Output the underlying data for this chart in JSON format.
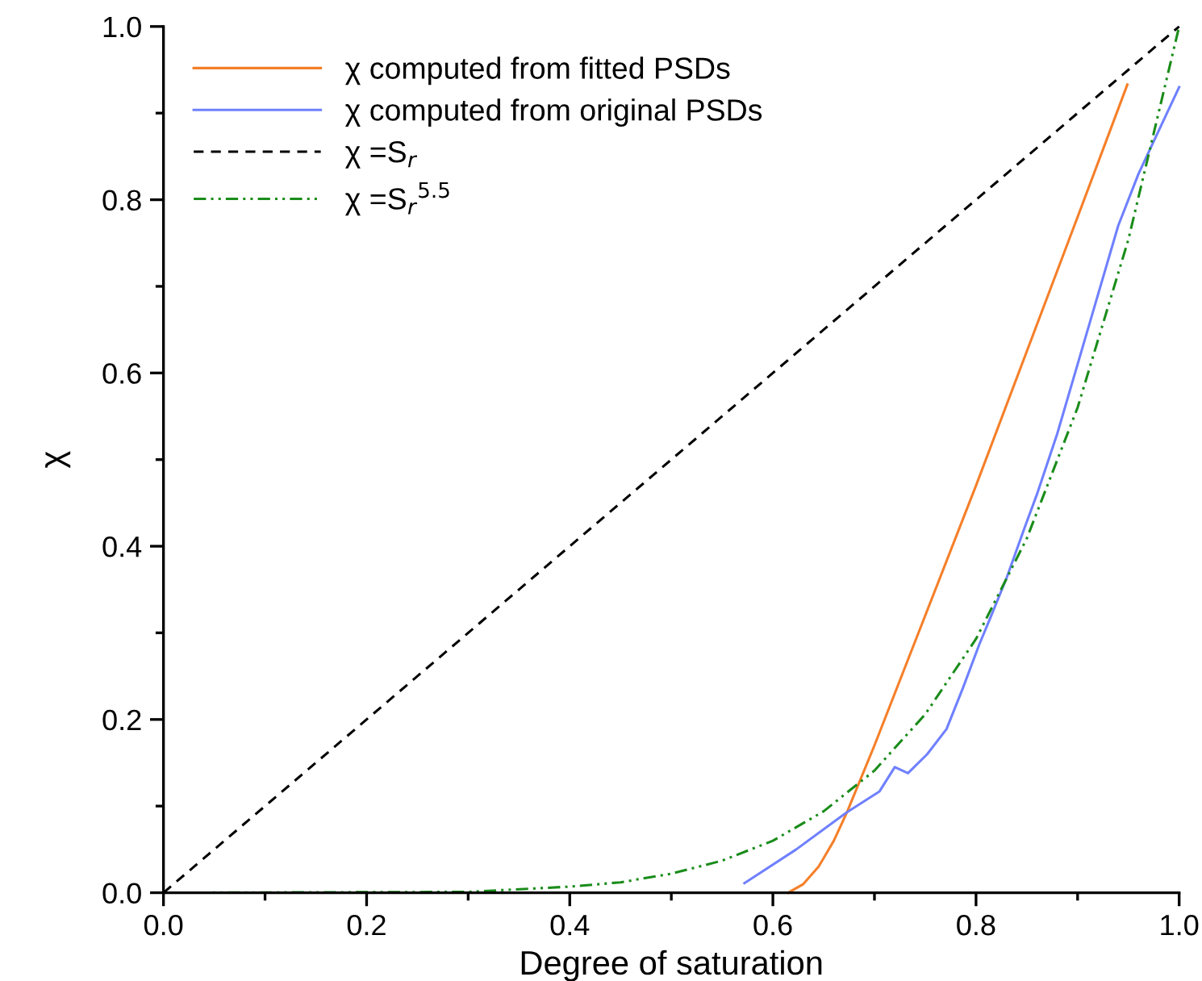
{
  "chart_data": {
    "type": "line",
    "xlabel": "Degree of saturation",
    "ylabel": "χ",
    "xlim": [
      0,
      1
    ],
    "ylim": [
      0,
      1
    ],
    "xticks": [
      {
        "value": 0,
        "label": "0.0"
      },
      {
        "value": 0.2,
        "label": "0.2"
      },
      {
        "value": 0.4,
        "label": "0.4"
      },
      {
        "value": 0.6,
        "label": "0.6"
      },
      {
        "value": 0.8,
        "label": "0.8"
      },
      {
        "value": 1,
        "label": "1.0"
      }
    ],
    "yticks": [
      {
        "value": 0,
        "label": "0.0"
      },
      {
        "value": 0.2,
        "label": "0.2"
      },
      {
        "value": 0.4,
        "label": "0.4"
      },
      {
        "value": 0.6,
        "label": "0.6"
      },
      {
        "value": 0.8,
        "label": "0.8"
      },
      {
        "value": 1,
        "label": "1.0"
      }
    ],
    "grid": false,
    "legend": "top left",
    "marker": "none",
    "series": [
      {
        "name": "χ computed from fitted PSDs",
        "color": "#f57f29",
        "line_style": "solid",
        "x": [
          0.615,
          0.63,
          0.645,
          0.66,
          0.673,
          0.7,
          0.75,
          0.8,
          0.85,
          0.9,
          0.949
        ],
        "values": [
          0,
          0.01,
          0.03,
          0.06,
          0.093,
          0.17,
          0.32,
          0.47,
          0.625,
          0.78,
          0.933
        ]
      },
      {
        "name": "χ computed from original PSDs",
        "color": "#6f80ff",
        "line_style": "solid",
        "x": [
          0.572,
          0.623,
          0.673,
          0.705,
          0.72,
          0.733,
          0.752,
          0.771,
          0.787,
          0.803,
          0.814,
          0.83,
          0.848,
          0.86,
          0.88,
          0.9,
          0.92,
          0.94,
          0.96,
          0.98,
          1.0
        ],
        "values": [
          0.011,
          0.05,
          0.093,
          0.117,
          0.145,
          0.138,
          0.16,
          0.189,
          0.236,
          0.286,
          0.317,
          0.363,
          0.422,
          0.46,
          0.53,
          0.61,
          0.69,
          0.77,
          0.83,
          0.88,
          0.93
        ]
      },
      {
        "name": "χ =S$_{r}$",
        "color": "#000000",
        "line_style": "dashed",
        "x": [
          0,
          1
        ],
        "values": [
          0,
          1
        ]
      },
      {
        "name": "χ =S$_{r}$$^{5.5}$",
        "color": "#1a8c1a",
        "line_style": "dashdotdot",
        "x": [
          0,
          0.3,
          0.4,
          0.45,
          0.5,
          0.55,
          0.6,
          0.65,
          0.7,
          0.75,
          0.8,
          0.85,
          0.9,
          0.95,
          1.0
        ],
        "values": [
          0,
          0.001,
          0.007,
          0.012,
          0.022,
          0.037,
          0.06,
          0.094,
          0.141,
          0.206,
          0.293,
          0.409,
          0.56,
          0.754,
          1.0
        ]
      }
    ]
  }
}
